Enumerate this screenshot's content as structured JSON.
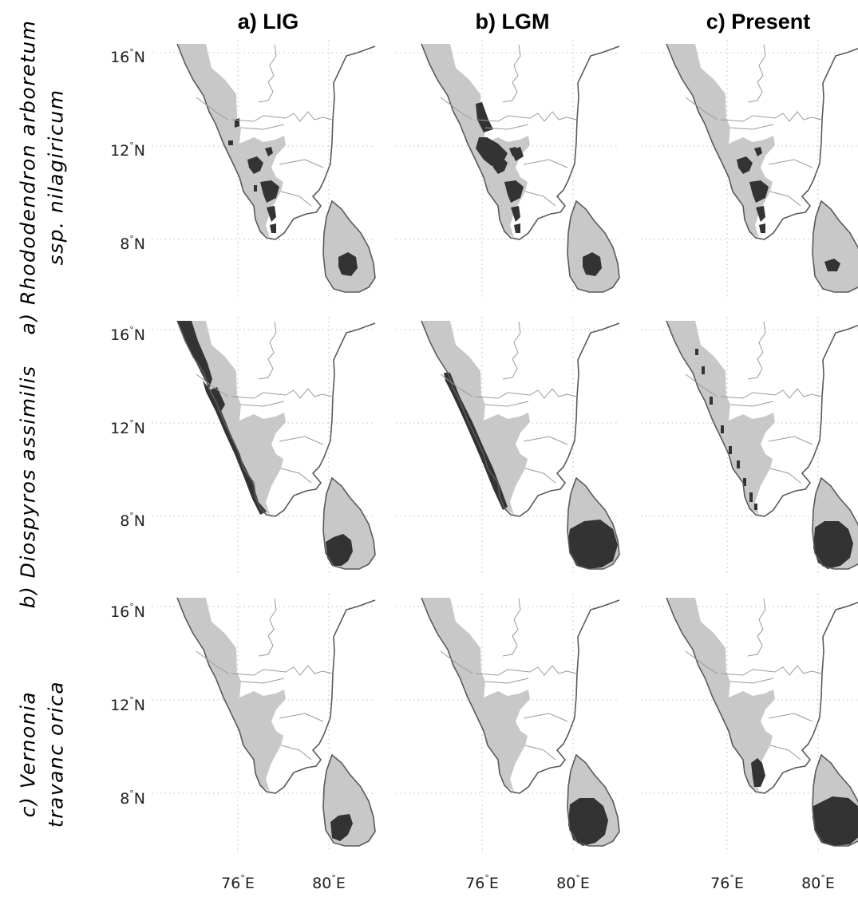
{
  "columns": [
    {
      "title": "a) LIG"
    },
    {
      "title": "b) LGM"
    },
    {
      "title": "c) Present"
    }
  ],
  "rows": [
    {
      "label_line1": "a) Rhododendron arboretum",
      "label_line2": "ssp. nilagiricum"
    },
    {
      "label_line1": "b) Diospyros assimilis",
      "label_line2": ""
    },
    {
      "label_line1": "c) Vernonia",
      "label_line2": "travanc οrica"
    }
  ],
  "axes": {
    "lat_ticks": [
      {
        "value": "16",
        "suffix": "N"
      },
      {
        "value": "12",
        "suffix": "N"
      },
      {
        "value": "8",
        "suffix": "N"
      }
    ],
    "lon_ticks": [
      {
        "value": "76",
        "suffix": "E"
      },
      {
        "value": "80",
        "suffix": "E"
      }
    ],
    "degree_symbol": "°"
  },
  "legend_colors": {
    "suitable_habitat": "#333333",
    "study_area": "#c8c8c8",
    "coastline": "#5a5a5a",
    "gridline": "#bdbdbd"
  },
  "map_extent": {
    "lon": [
      73,
      82
    ],
    "lat": [
      5.5,
      16.5
    ]
  },
  "panels": [
    {
      "row": 0,
      "col": 0,
      "suitable_areas": [
        "nilgiri-core",
        "anamalai-core",
        "coorg-patches",
        "sri-lanka-central"
      ]
    },
    {
      "row": 0,
      "col": 1,
      "suitable_areas": [
        "western-ghats-central-large",
        "nilgiri-core",
        "anamalai-core",
        "sri-lanka-central"
      ]
    },
    {
      "row": 0,
      "col": 2,
      "suitable_areas": [
        "nilgiri-core",
        "anamalai-core",
        "sri-lanka-central-small"
      ]
    },
    {
      "row": 1,
      "col": 0,
      "suitable_areas": [
        "west-coast-strip-full",
        "sri-lanka-southwest"
      ]
    },
    {
      "row": 1,
      "col": 1,
      "suitable_areas": [
        "west-coast-strip-south",
        "sri-lanka-south-east"
      ]
    },
    {
      "row": 1,
      "col": 2,
      "suitable_areas": [
        "ghats-scattered-cells",
        "sri-lanka-southwest-broad"
      ]
    },
    {
      "row": 2,
      "col": 0,
      "suitable_areas": [
        "sri-lanka-southwest-small"
      ]
    },
    {
      "row": 2,
      "col": 1,
      "suitable_areas": [
        "sri-lanka-southwest-broad"
      ]
    },
    {
      "row": 2,
      "col": 2,
      "suitable_areas": [
        "agasthyamalai-patch",
        "sri-lanka-south-full"
      ]
    }
  ]
}
